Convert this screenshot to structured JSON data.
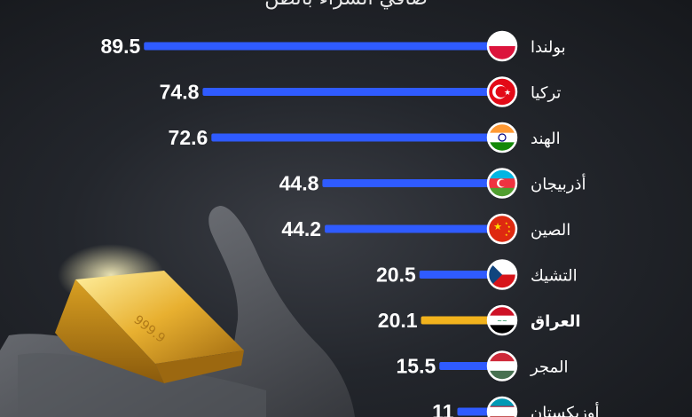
{
  "chart_data": {
    "type": "bar",
    "orientation": "horizontal",
    "subtitle": "صافي الشراء بالطن",
    "categories": [
      "بولندا",
      "تركيا",
      "الهند",
      "أذربيجان",
      "الصين",
      "التشيك",
      "العراق",
      "المجر",
      "أوزبكستان"
    ],
    "values": [
      89.5,
      74.8,
      72.6,
      44.8,
      44.2,
      20.5,
      20.1,
      15.5,
      11
    ],
    "value_labels": [
      "89.5",
      "74.8",
      "72.6",
      "44.8",
      "44.2",
      "20.5",
      "20.1",
      "15.5",
      "11"
    ],
    "highlight": "العراق",
    "flags": [
      "poland-flag",
      "turkey-flag",
      "india-flag",
      "azerbaijan-flag",
      "china-flag",
      "czech-flag",
      "iraq-flag",
      "hungary-flag",
      "uzbekistan-flag"
    ],
    "colors": {
      "bar": "#2f5bff",
      "highlight_bar": "#f2b31d",
      "text": "#ffffff",
      "background": "#1e2126"
    }
  }
}
